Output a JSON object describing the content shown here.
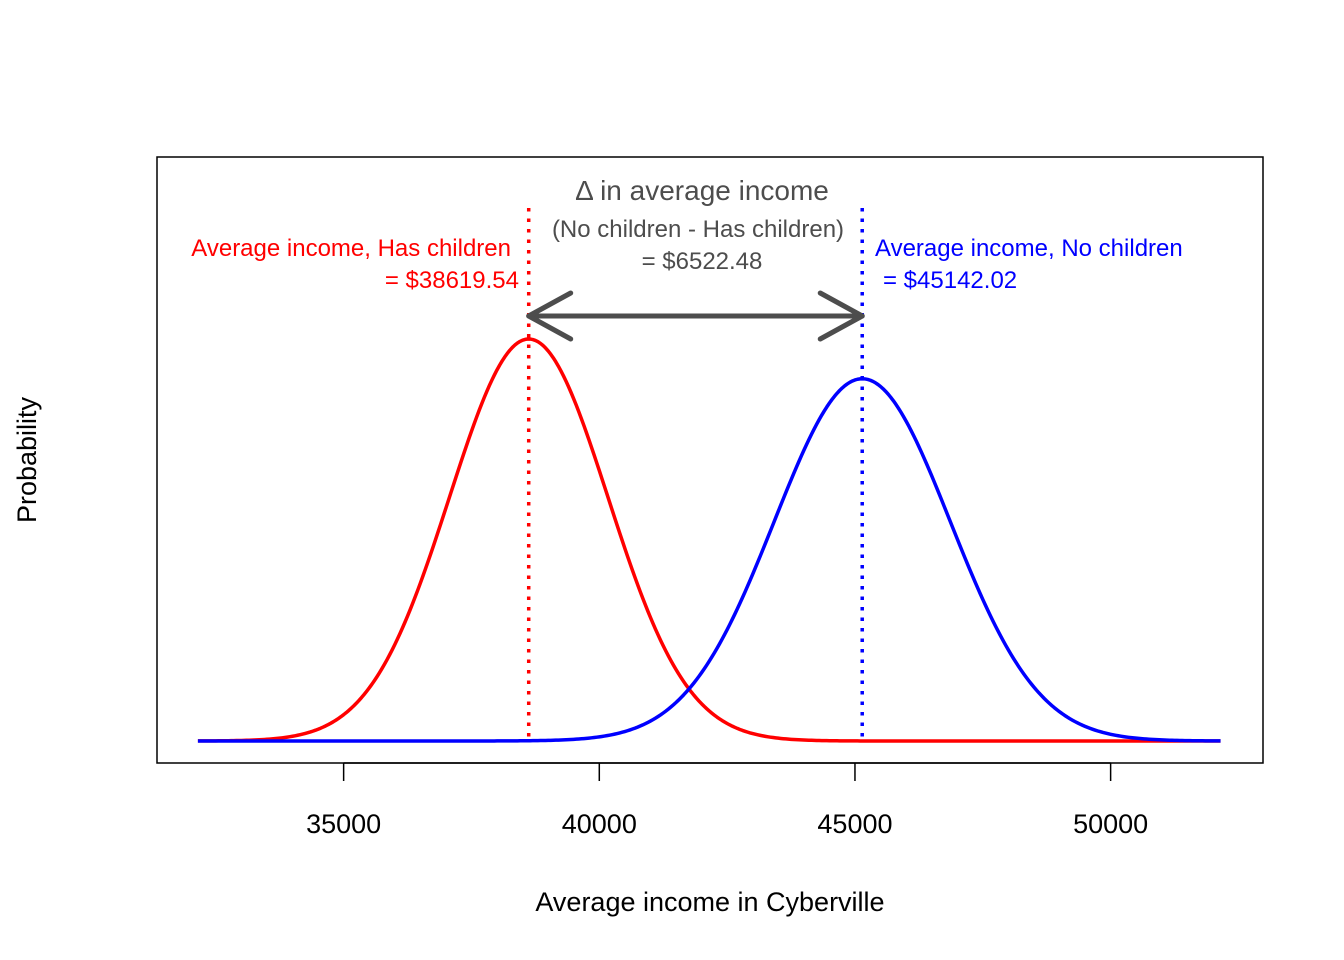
{
  "chart_data": {
    "type": "line",
    "xlabel": "Average income in Cyberville",
    "ylabel": "Probability",
    "xlim": [
      31350,
      52980
    ],
    "x_ticks": [
      35000,
      40000,
      45000,
      50000
    ],
    "x_tick_labels": [
      "35000",
      "40000",
      "45000",
      "50000"
    ],
    "y_ticks_shown": false,
    "grid": false,
    "series": [
      {
        "name": "Has children",
        "color": "#ff0000",
        "distribution": "normal",
        "mean": 38619.54,
        "sd": 1550,
        "x_range": [
          32150,
          52150
        ]
      },
      {
        "name": "No children",
        "color": "#0000ff",
        "distribution": "normal",
        "mean": 45142.02,
        "sd": 1720,
        "x_range": [
          32150,
          52150
        ]
      }
    ],
    "vlines": [
      {
        "x": 38619.54,
        "color": "#ff0000",
        "style": "dotted"
      },
      {
        "x": 45142.02,
        "color": "#0000ff",
        "style": "dotted"
      }
    ],
    "arrow": {
      "from": 38619.54,
      "to": 45142.02,
      "color": "#4d4d4d",
      "double_headed": true
    },
    "annotations": {
      "red_line1": "Average income, Has children",
      "red_line2": "= $38619.54",
      "blue_line1": "Average income, No children",
      "blue_line2": "= $45142.02",
      "delta_symbol": "Δ",
      "delta_title": " in average income",
      "delta_sub": "(No children - Has children)",
      "delta_value": "= $6522.48"
    }
  }
}
